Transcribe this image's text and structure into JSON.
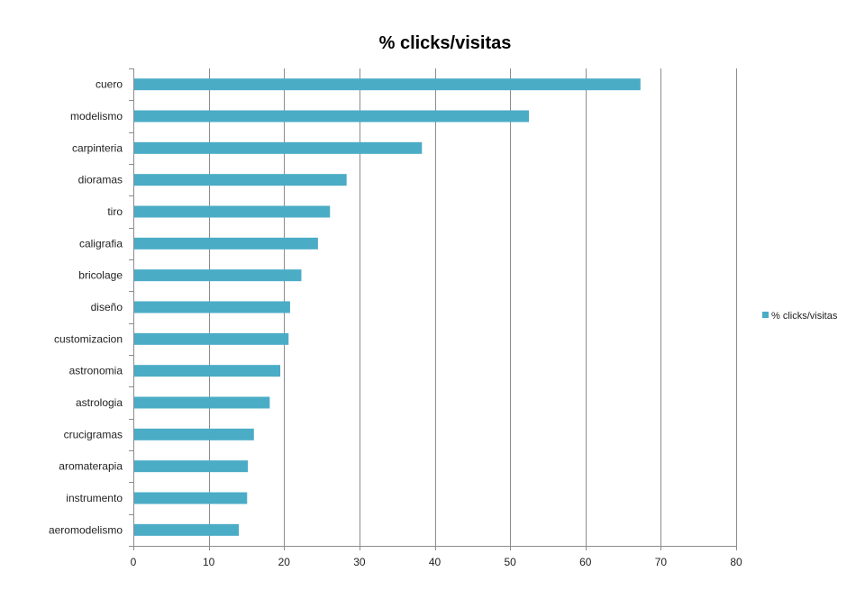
{
  "chart_data": {
    "type": "bar",
    "orientation": "horizontal",
    "title": "% clicks/visitas",
    "xlabel": "",
    "ylabel": "",
    "xlim": [
      0,
      80
    ],
    "xticks": [
      0,
      10,
      20,
      30,
      40,
      50,
      60,
      70,
      80
    ],
    "grid": "vertical",
    "legend_position": "right",
    "categories": [
      "cuero",
      "modelismo",
      "carpinteria",
      "dioramas",
      "tiro",
      "caligrafia",
      "bricolage",
      "diseño",
      "customizacion",
      "astronomia",
      "astrologia",
      "crucigramas",
      "aromaterapia",
      "instrumento",
      "aeromodelismo"
    ],
    "series": [
      {
        "name": "% clicks/visitas",
        "color": "#4bacc6",
        "values": [
          67.3,
          52.5,
          38.3,
          28.3,
          26.1,
          24.5,
          22.3,
          20.8,
          20.6,
          19.5,
          18.1,
          16.0,
          15.2,
          15.1,
          14.0
        ]
      }
    ]
  }
}
